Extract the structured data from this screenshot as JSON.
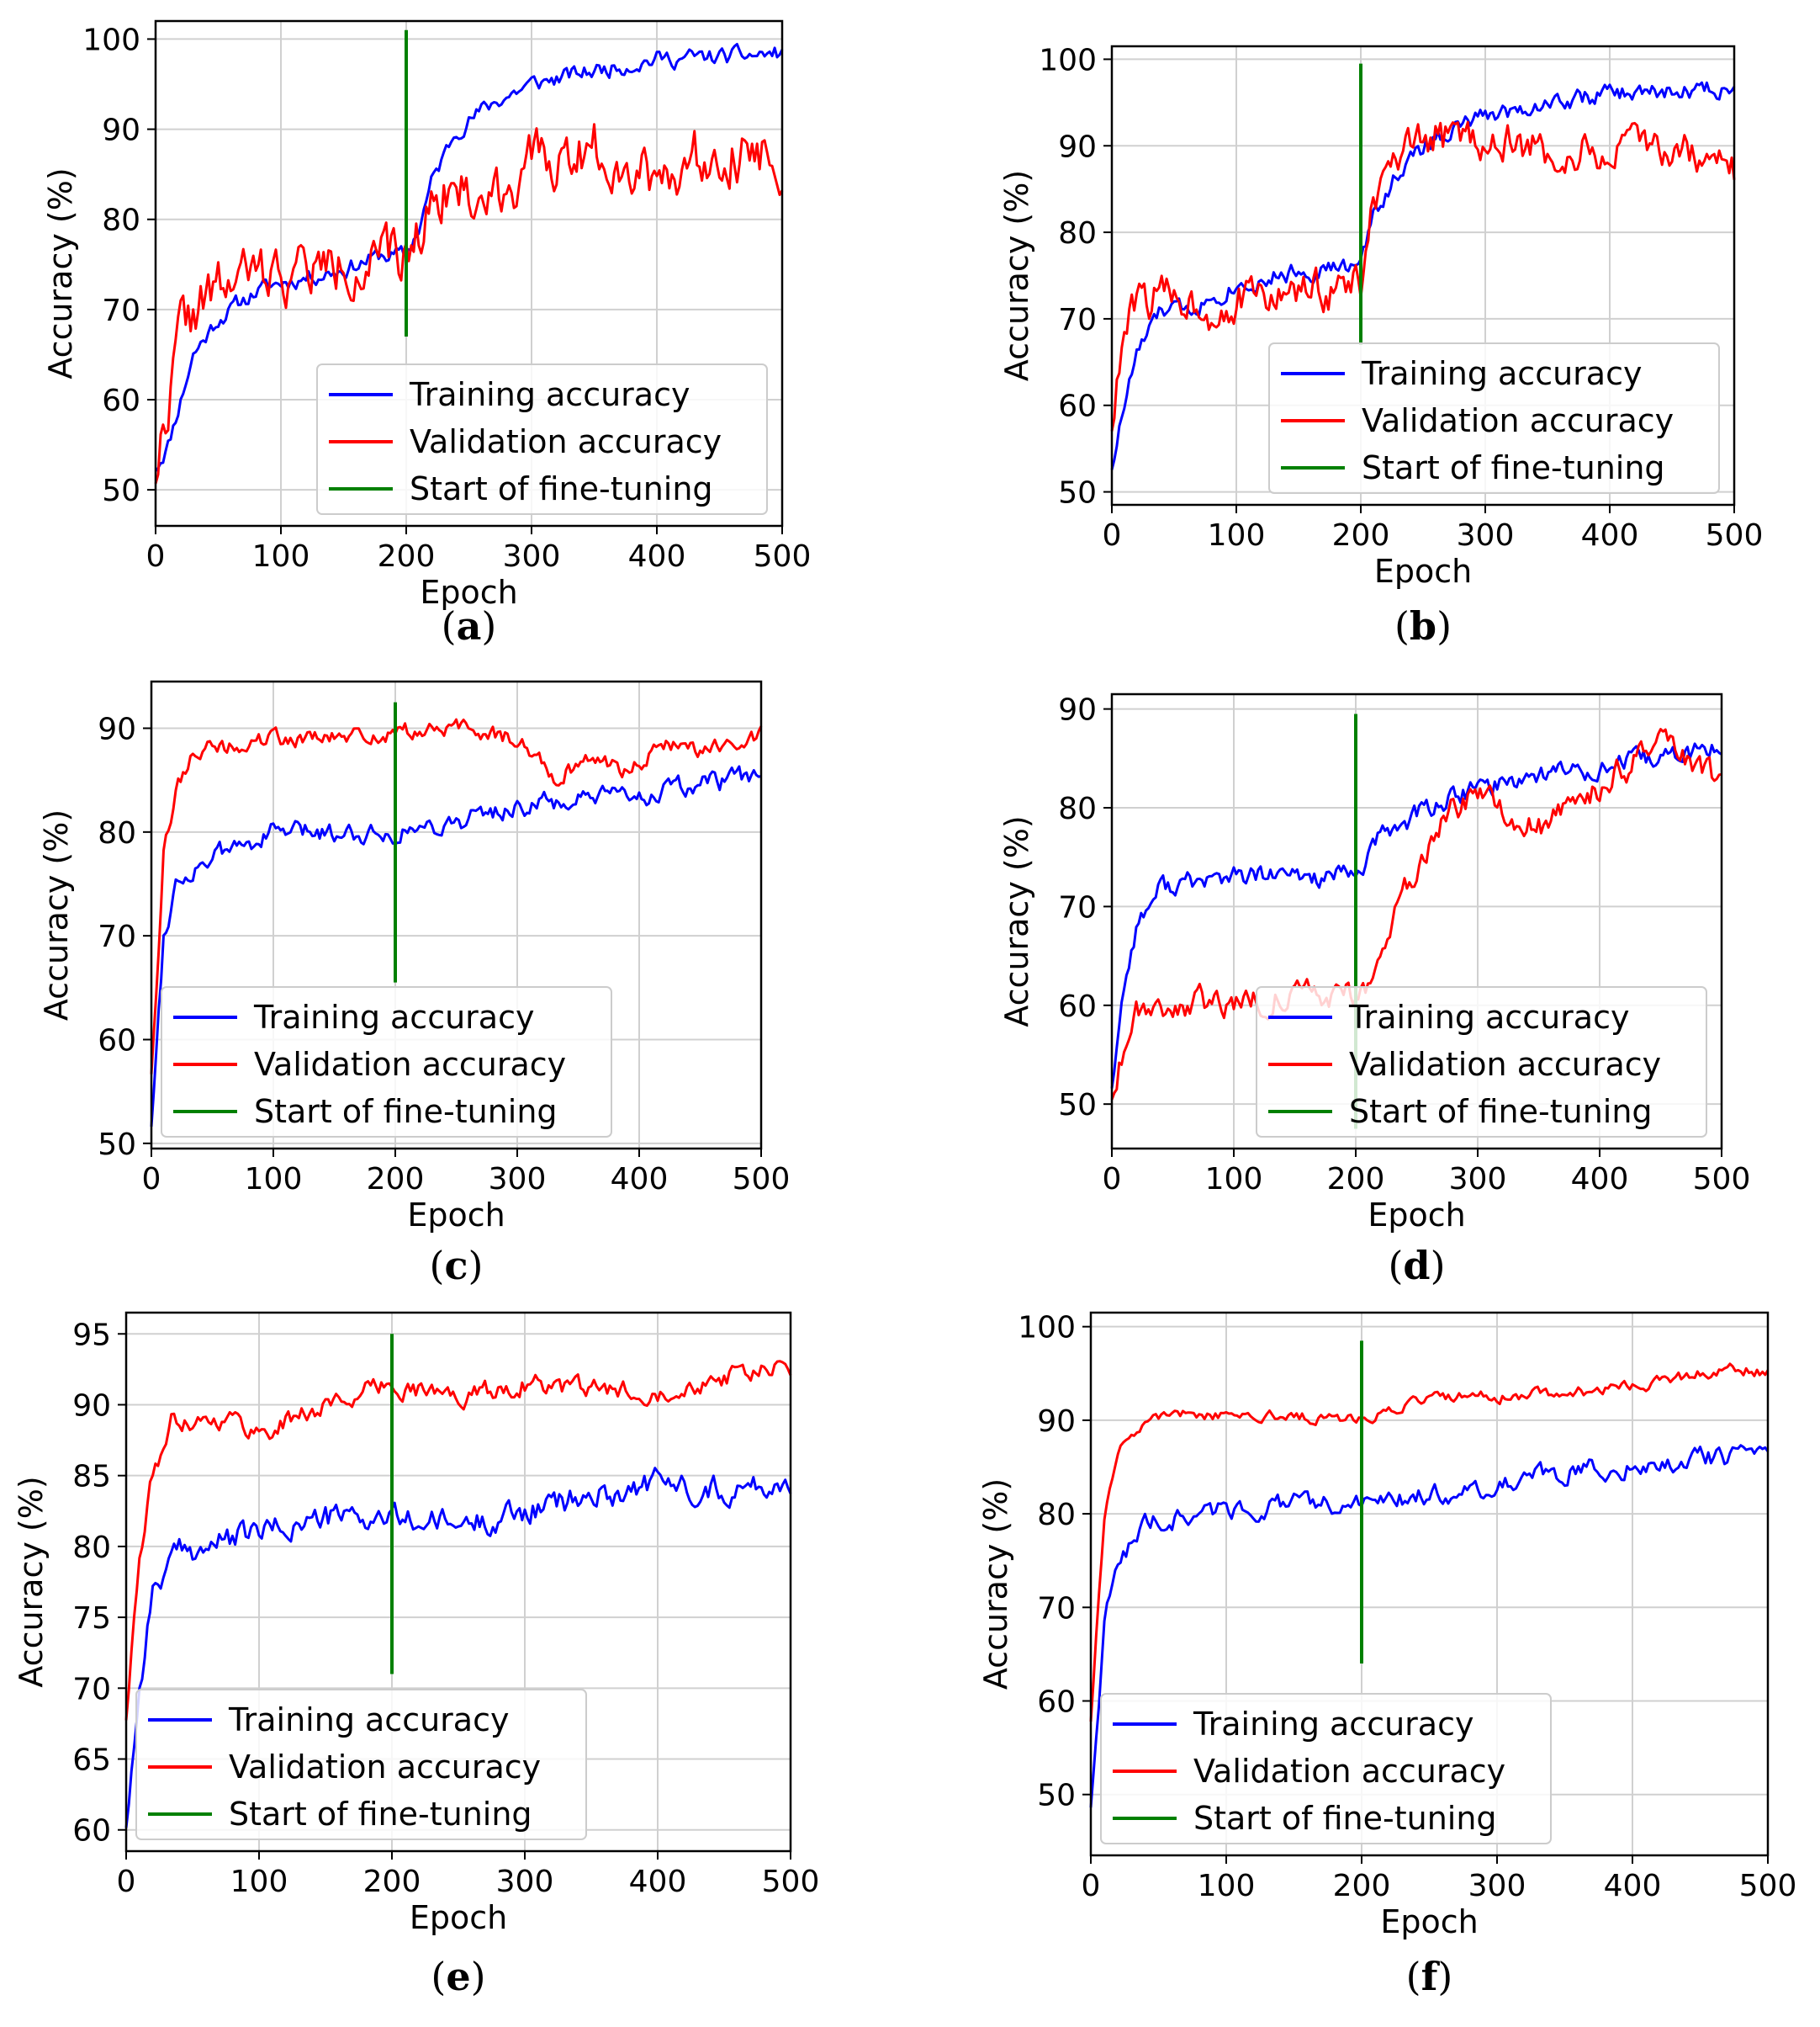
{
  "legend": {
    "train_label": "Training accuracy",
    "val_label": "Validation accuracy",
    "ft_label": "Start of fine-tuning"
  },
  "colors": {
    "train": "#0000ff",
    "val": "#ff0000",
    "ft": "#008000",
    "grid": "#d0d0d0"
  },
  "chart_data": [
    {
      "id": "a",
      "caption": "a",
      "type": "line",
      "xlabel": "Epoch",
      "ylabel": "Accuracy (%)",
      "xlim": [
        0,
        500
      ],
      "ylim": [
        46,
        102
      ],
      "xticks": [
        0,
        100,
        200,
        300,
        400,
        500
      ],
      "yticks": [
        50,
        60,
        70,
        80,
        90,
        100
      ],
      "grid": true,
      "legend_position": "lower-right",
      "fine_tuning_epoch": 200,
      "fine_tuning_line_range": [
        67,
        101
      ],
      "series": [
        {
          "name": "Training accuracy",
          "anchors": [
            [
              0,
              52.5
            ],
            [
              10,
              55
            ],
            [
              20,
              60
            ],
            [
              30,
              65
            ],
            [
              50,
              69
            ],
            [
              80,
              72
            ],
            [
              100,
              73
            ],
            [
              150,
              74.5
            ],
            [
              180,
              76
            ],
            [
              200,
              76
            ],
            [
              210,
              79
            ],
            [
              220,
              84
            ],
            [
              240,
              90
            ],
            [
              270,
              93
            ],
            [
              300,
              95
            ],
            [
              350,
              96.5
            ],
            [
              400,
              97.8
            ],
            [
              450,
              98
            ],
            [
              500,
              98.4
            ]
          ],
          "noise": 0.8,
          "seed": 11
        },
        {
          "name": "Validation accuracy",
          "anchors": [
            [
              0,
              52
            ],
            [
              10,
              60
            ],
            [
              20,
              68
            ],
            [
              40,
              71
            ],
            [
              60,
              73
            ],
            [
              80,
              74
            ],
            [
              100,
              74
            ],
            [
              150,
              75
            ],
            [
              200,
              75.5
            ],
            [
              210,
              79
            ],
            [
              230,
              84
            ],
            [
              260,
              82
            ],
            [
              300,
              86
            ],
            [
              350,
              88
            ],
            [
              400,
              85
            ],
            [
              450,
              88
            ],
            [
              500,
              87
            ]
          ],
          "noise": 2.6,
          "seed": 22
        }
      ]
    },
    {
      "id": "b",
      "caption": "b",
      "type": "line",
      "xlabel": "Epoch",
      "ylabel": "Accuracy (%)",
      "xlim": [
        0,
        500
      ],
      "ylim": [
        48.5,
        101.5
      ],
      "xticks": [
        0,
        100,
        200,
        300,
        400,
        500
      ],
      "yticks": [
        50,
        60,
        70,
        80,
        90,
        100
      ],
      "grid": true,
      "legend_position": "lower-right",
      "fine_tuning_epoch": 200,
      "fine_tuning_line_range": [
        67,
        99.5
      ],
      "series": [
        {
          "name": "Training accuracy",
          "anchors": [
            [
              0,
              53
            ],
            [
              10,
              60
            ],
            [
              20,
              66
            ],
            [
              40,
              71
            ],
            [
              60,
              71
            ],
            [
              100,
              74
            ],
            [
              150,
              75.5
            ],
            [
              190,
              76
            ],
            [
              200,
              76
            ],
            [
              210,
              82
            ],
            [
              230,
              87
            ],
            [
              260,
              91
            ],
            [
              300,
              93.5
            ],
            [
              350,
              95
            ],
            [
              400,
              96
            ],
            [
              450,
              96.2
            ],
            [
              500,
              96.8
            ]
          ],
          "noise": 0.9,
          "seed": 33
        },
        {
          "name": "Validation accuracy",
          "anchors": [
            [
              0,
              58
            ],
            [
              10,
              68
            ],
            [
              20,
              72
            ],
            [
              50,
              73
            ],
            [
              80,
              71
            ],
            [
              100,
              72
            ],
            [
              150,
              73
            ],
            [
              200,
              74
            ],
            [
              210,
              83
            ],
            [
              230,
              88
            ],
            [
              260,
              91
            ],
            [
              300,
              91
            ],
            [
              350,
              89
            ],
            [
              400,
              89
            ],
            [
              450,
              90
            ],
            [
              500,
              87
            ]
          ],
          "noise": 2.0,
          "seed": 44
        }
      ]
    },
    {
      "id": "c",
      "caption": "c",
      "type": "line",
      "xlabel": "Epoch",
      "ylabel": "Accuracy (%)",
      "xlim": [
        0,
        500
      ],
      "ylim": [
        49.5,
        94.5
      ],
      "xticks": [
        0,
        100,
        200,
        300,
        400,
        500
      ],
      "yticks": [
        50,
        60,
        70,
        80,
        90
      ],
      "grid": true,
      "legend_position": "lower-left",
      "fine_tuning_epoch": 200,
      "fine_tuning_line_range": [
        65.5,
        92.5
      ],
      "series": [
        {
          "name": "Training accuracy",
          "anchors": [
            [
              0,
              52
            ],
            [
              10,
              70
            ],
            [
              20,
              75
            ],
            [
              40,
              77
            ],
            [
              100,
              80
            ],
            [
              150,
              80
            ],
            [
              200,
              80
            ],
            [
              250,
              81
            ],
            [
              300,
              82.5
            ],
            [
              350,
              83
            ],
            [
              400,
              83.5
            ],
            [
              450,
              84.5
            ],
            [
              500,
              85.5
            ]
          ],
          "noise": 0.8,
          "seed": 55
        },
        {
          "name": "Validation accuracy",
          "anchors": [
            [
              0,
              57
            ],
            [
              10,
              78
            ],
            [
              20,
              84
            ],
            [
              35,
              88
            ],
            [
              60,
              88
            ],
            [
              100,
              89
            ],
            [
              150,
              89
            ],
            [
              200,
              89.5
            ],
            [
              250,
              90
            ],
            [
              300,
              89
            ],
            [
              330,
              85.5
            ],
            [
              360,
              87
            ],
            [
              390,
              86
            ],
            [
              420,
              88.5
            ],
            [
              460,
              88
            ],
            [
              500,
              89.5
            ]
          ],
          "noise": 0.7,
          "seed": 66
        }
      ]
    },
    {
      "id": "d",
      "caption": "d",
      "type": "line",
      "xlabel": "Epoch",
      "ylabel": "Accuracy (%)",
      "xlim": [
        0,
        500
      ],
      "ylim": [
        45.5,
        91.5
      ],
      "xticks": [
        0,
        100,
        200,
        300,
        400,
        500
      ],
      "yticks": [
        50,
        60,
        70,
        80,
        90
      ],
      "grid": true,
      "legend_position": "lower-right",
      "fine_tuning_epoch": 200,
      "fine_tuning_line_range": [
        47.5,
        89.5
      ],
      "series": [
        {
          "name": "Training accuracy",
          "anchors": [
            [
              0,
              52
            ],
            [
              10,
              62
            ],
            [
              20,
              68
            ],
            [
              40,
              72
            ],
            [
              100,
              73
            ],
            [
              150,
              73
            ],
            [
              200,
              73
            ],
            [
              220,
              77
            ],
            [
              260,
              80
            ],
            [
              300,
              82
            ],
            [
              350,
              83.5
            ],
            [
              400,
              84
            ],
            [
              450,
              85
            ],
            [
              500,
              86
            ]
          ],
          "noise": 0.9,
          "seed": 77
        },
        {
          "name": "Validation accuracy",
          "anchors": [
            [
              0,
              51
            ],
            [
              10,
              56
            ],
            [
              20,
              60
            ],
            [
              50,
              60
            ],
            [
              100,
              60.5
            ],
            [
              150,
              61
            ],
            [
              200,
              61
            ],
            [
              215,
              63
            ],
            [
              240,
              71
            ],
            [
              270,
              79
            ],
            [
              300,
              81
            ],
            [
              350,
              78
            ],
            [
              380,
              80
            ],
            [
              420,
              84
            ],
            [
              450,
              86
            ],
            [
              480,
              84
            ],
            [
              500,
              82.5
            ]
          ],
          "noise": 1.2,
          "seed": 88
        }
      ]
    },
    {
      "id": "e",
      "caption": "e",
      "type": "line",
      "xlabel": "Epoch",
      "ylabel": "Accuracy (%)",
      "xlim": [
        0,
        500
      ],
      "ylim": [
        58.5,
        96.5
      ],
      "xticks": [
        0,
        100,
        200,
        300,
        400,
        500
      ],
      "yticks": [
        60,
        65,
        70,
        75,
        80,
        85,
        90,
        95
      ],
      "grid": true,
      "legend_position": "lower-left",
      "fine_tuning_epoch": 200,
      "fine_tuning_line_range": [
        71,
        95
      ],
      "series": [
        {
          "name": "Training accuracy",
          "anchors": [
            [
              0,
              60.5
            ],
            [
              10,
              70
            ],
            [
              20,
              77
            ],
            [
              40,
              79.5
            ],
            [
              100,
              81
            ],
            [
              150,
              82
            ],
            [
              200,
              82
            ],
            [
              250,
              81.5
            ],
            [
              300,
              82.5
            ],
            [
              350,
              83.5
            ],
            [
              400,
              84.5
            ],
            [
              450,
              84
            ],
            [
              500,
              84.5
            ]
          ],
          "noise": 0.8,
          "seed": 99
        },
        {
          "name": "Validation accuracy",
          "anchors": [
            [
              0,
              68
            ],
            [
              10,
              79
            ],
            [
              20,
              85
            ],
            [
              35,
              89
            ],
            [
              80,
              89
            ],
            [
              100,
              88
            ],
            [
              150,
              90
            ],
            [
              200,
              91.5
            ],
            [
              250,
              90.5
            ],
            [
              300,
              91.5
            ],
            [
              350,
              91
            ],
            [
              400,
              91
            ],
            [
              450,
              92
            ],
            [
              500,
              92.5
            ]
          ],
          "noise": 0.6,
          "seed": 111
        }
      ]
    },
    {
      "id": "f",
      "caption": "f",
      "type": "line",
      "xlabel": "Epoch",
      "ylabel": "Accuracy (%)",
      "xlim": [
        0,
        500
      ],
      "ylim": [
        43.5,
        101.5
      ],
      "xticks": [
        0,
        100,
        200,
        300,
        400,
        500
      ],
      "yticks": [
        50,
        60,
        70,
        80,
        90,
        100
      ],
      "grid": true,
      "legend_position": "lower-left",
      "fine_tuning_epoch": 200,
      "fine_tuning_line_range": [
        64,
        98.5
      ],
      "series": [
        {
          "name": "Training accuracy",
          "anchors": [
            [
              0,
              49
            ],
            [
              10,
              68
            ],
            [
              20,
              75
            ],
            [
              40,
              79
            ],
            [
              100,
              80.5
            ],
            [
              150,
              81
            ],
            [
              200,
              81
            ],
            [
              250,
              82
            ],
            [
              300,
              83
            ],
            [
              350,
              84.5
            ],
            [
              400,
              85
            ],
            [
              450,
              86
            ],
            [
              500,
              86
            ]
          ],
          "noise": 0.9,
          "seed": 122
        },
        {
          "name": "Validation accuracy",
          "anchors": [
            [
              0,
              58
            ],
            [
              10,
              80
            ],
            [
              20,
              87
            ],
            [
              40,
              90
            ],
            [
              60,
              91
            ],
            [
              100,
              90.5
            ],
            [
              150,
              90.5
            ],
            [
              200,
              90
            ],
            [
              250,
              92.5
            ],
            [
              300,
              92.5
            ],
            [
              350,
              93
            ],
            [
              400,
              93.5
            ],
            [
              450,
              95
            ],
            [
              480,
              95.5
            ],
            [
              500,
              95
            ]
          ],
          "noise": 0.5,
          "seed": 133
        }
      ]
    }
  ]
}
